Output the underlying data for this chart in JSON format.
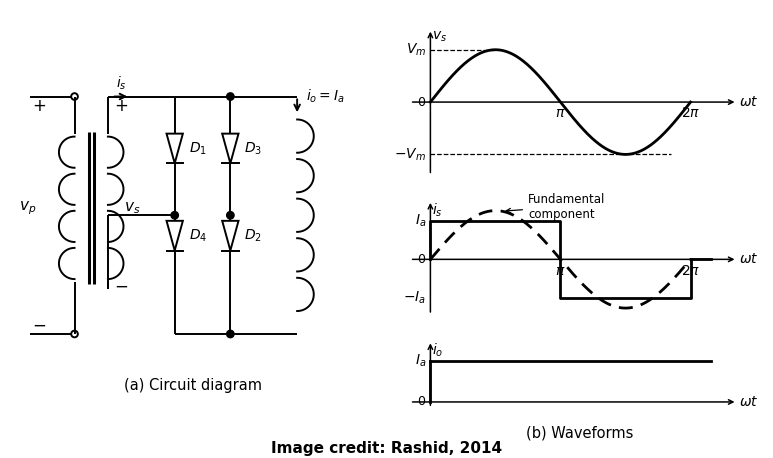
{
  "title_credit": "Image credit: Rashid, 2014",
  "subtitle_a": "(a) Circuit diagram",
  "subtitle_b": "(b) Waveforms",
  "bg_color": "#ffffff",
  "line_color": "#000000",
  "Vm": 1.0,
  "Ia": 1.0,
  "two_pi": 6.283185307179586,
  "pi": 3.141592653589793
}
